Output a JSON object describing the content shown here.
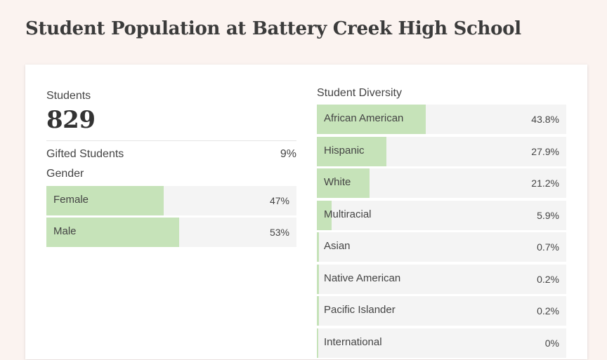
{
  "page": {
    "title": "Student Population at Battery Creek High School"
  },
  "stats": {
    "students_label": "Students",
    "students_count": "829",
    "gifted_label": "Gifted Students",
    "gifted_value": "9%"
  },
  "gender": {
    "label": "Gender",
    "items": [
      {
        "name": "Female",
        "value": "47%",
        "percent": 47
      },
      {
        "name": "Male",
        "value": "53%",
        "percent": 53
      }
    ]
  },
  "diversity": {
    "label": "Student Diversity",
    "items": [
      {
        "name": "African American",
        "value": "43.8%",
        "percent": 43.8
      },
      {
        "name": "Hispanic",
        "value": "27.9%",
        "percent": 27.9
      },
      {
        "name": "White",
        "value": "21.2%",
        "percent": 21.2
      },
      {
        "name": "Multiracial",
        "value": "5.9%",
        "percent": 5.9
      },
      {
        "name": "Asian",
        "value": "0.7%",
        "percent": 0.7
      },
      {
        "name": "Native American",
        "value": "0.2%",
        "percent": 0.2
      },
      {
        "name": "Pacific Islander",
        "value": "0.2%",
        "percent": 0.2
      },
      {
        "name": "International",
        "value": "0%",
        "percent": 0
      }
    ]
  },
  "colors": {
    "page_background": "#fbf3f0",
    "bar_fill": "#c6e3b9",
    "bar_track": "#f4f4f4"
  }
}
